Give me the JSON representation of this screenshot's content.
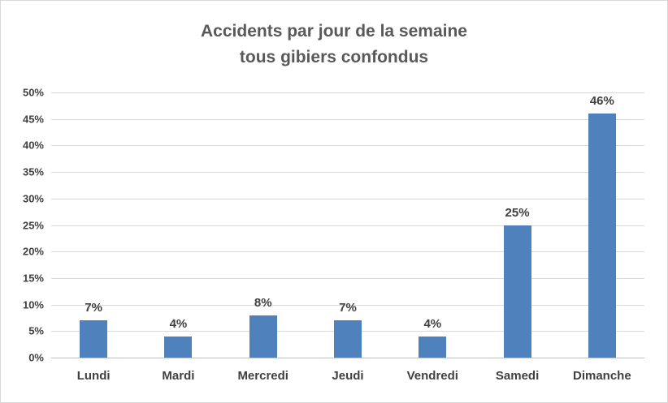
{
  "chart_data": {
    "type": "bar",
    "title": "Accidents par jour de la semaine tous gibiers confondus",
    "title_lines": [
      "Accidents par jour de la semaine",
      "tous gibiers confondus"
    ],
    "categories": [
      "Lundi",
      "Mardi",
      "Mercredi",
      "Jeudi",
      "Vendredi",
      "Samedi",
      "Dimanche"
    ],
    "values": [
      7,
      4,
      8,
      7,
      4,
      25,
      46
    ],
    "data_labels": [
      "7%",
      "4%",
      "8%",
      "7%",
      "4%",
      "25%",
      "46%"
    ],
    "y_ticks": [
      "0%",
      "5%",
      "10%",
      "15%",
      "20%",
      "25%",
      "30%",
      "35%",
      "40%",
      "45%",
      "50%"
    ],
    "ylim": [
      0,
      50
    ],
    "y_step": 5,
    "xlabel": "",
    "ylabel": "",
    "legend_position": "none",
    "grid": true,
    "bar_color": "#4f81bd",
    "gridline_color": "#d9d9d9",
    "axis_line_color": "#bfbfbf",
    "title_color": "#595959",
    "label_color": "#404040"
  }
}
